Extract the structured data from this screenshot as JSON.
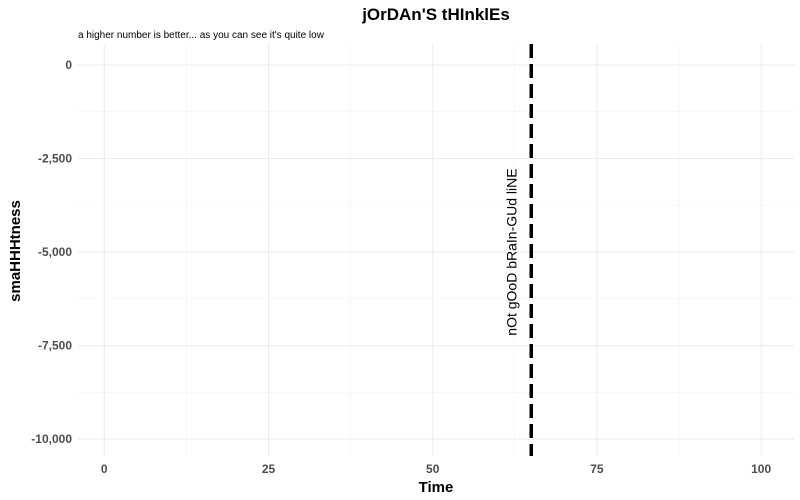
{
  "chart_data": {
    "type": "line",
    "title": "jOrDAn'S tHInklEs",
    "subtitle": "a higher number is better... as you can see it's quite low",
    "xlabel": "Time",
    "ylabel": "smaHHHtness",
    "xlim": [
      -4,
      105
    ],
    "ylim": [
      -10450,
      560
    ],
    "x_ticks": [
      0,
      25,
      50,
      75,
      100
    ],
    "x_tick_labels": [
      "0",
      "25",
      "50",
      "75",
      "100"
    ],
    "y_ticks": [
      0,
      -2500,
      -5000,
      -7500,
      -10000
    ],
    "y_tick_labels": [
      "0",
      "-2,500",
      "-5,000",
      "-7,500",
      "-10,000"
    ],
    "grid": true,
    "series": [],
    "reference_lines": [
      {
        "orientation": "vertical",
        "x": 65,
        "style": "dashed",
        "color": "#000000",
        "label": "nOt gOoD bRaIn-GUd liNE",
        "label_x": 62,
        "label_y": -5000
      }
    ]
  }
}
